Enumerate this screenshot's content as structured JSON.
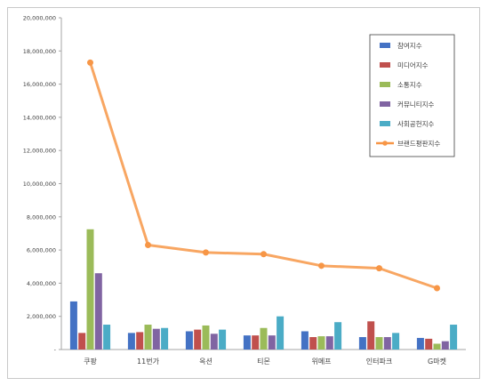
{
  "chart_data": {
    "type": "bar",
    "categories": [
      "쿠팡",
      "11번가",
      "옥션",
      "티몬",
      "위메프",
      "인터파크",
      "G마켓"
    ],
    "series": [
      {
        "name": "참여지수",
        "kind": "bar",
        "color": "#4472C4",
        "values": [
          2900000,
          1000000,
          1100000,
          850000,
          1100000,
          750000,
          700000
        ]
      },
      {
        "name": "미디어지수",
        "kind": "bar",
        "color": "#C0504D",
        "values": [
          1000000,
          1050000,
          1200000,
          850000,
          750000,
          1700000,
          650000
        ]
      },
      {
        "name": "소통지수",
        "kind": "bar",
        "color": "#9BBB59",
        "values": [
          7250000,
          1500000,
          1450000,
          1300000,
          800000,
          750000,
          350000
        ]
      },
      {
        "name": "커뮤니티지수",
        "kind": "bar",
        "color": "#8064A2",
        "values": [
          4600000,
          1250000,
          950000,
          850000,
          800000,
          750000,
          500000
        ]
      },
      {
        "name": "사회공헌지수",
        "kind": "bar",
        "color": "#4BACC6",
        "values": [
          1500000,
          1300000,
          1200000,
          2000000,
          1650000,
          1000000,
          1500000
        ]
      },
      {
        "name": "브랜드평판지수",
        "kind": "line",
        "color": "#F79646",
        "values": [
          17300000,
          6300000,
          5850000,
          5750000,
          5050000,
          4900000,
          3700000
        ]
      }
    ],
    "yticks": [
      "-",
      "2,000,000",
      "4,000,000",
      "6,000,000",
      "8,000,000",
      "10,000,000",
      "12,000,000",
      "14,000,000",
      "16,000,000",
      "18,000,000",
      "20,000,000"
    ],
    "ylim": [
      0,
      20000000
    ],
    "grid": false,
    "legend_position": "top-right"
  }
}
